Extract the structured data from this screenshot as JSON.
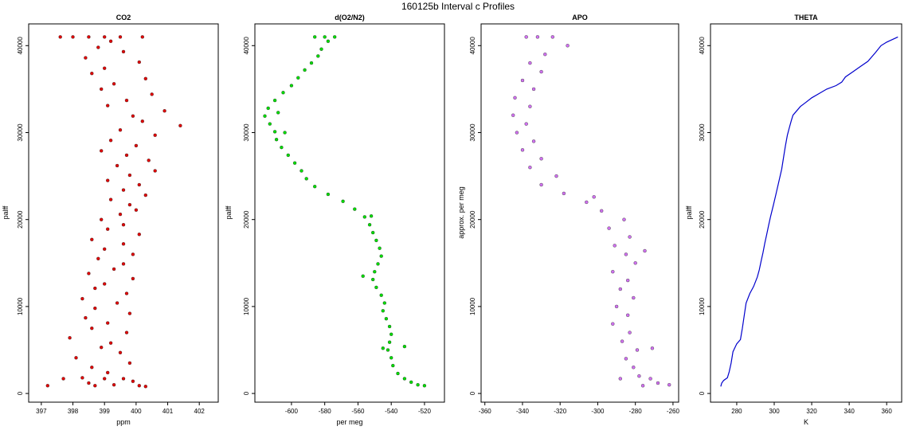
{
  "figure_title": "160125b   Interval c Profiles",
  "chart_data": [
    {
      "type": "scatter",
      "title": "CO2",
      "xlabel": "ppm",
      "ylabel": "palff",
      "xlim": [
        396.6,
        402.6
      ],
      "ylim": [
        -1000,
        42500
      ],
      "xticks": [
        397,
        398,
        399,
        400,
        401,
        402
      ],
      "yticks": [
        0,
        10000,
        20000,
        30000,
        40000
      ],
      "color": "#e00000",
      "series": [
        {
          "values": [
            [
              398.5,
              41000
            ],
            [
              399.0,
              41000
            ],
            [
              399.5,
              41000
            ],
            [
              398.0,
              41000
            ],
            [
              400.2,
              41000
            ],
            [
              397.6,
              41000
            ],
            [
              399.2,
              40500
            ],
            [
              398.8,
              39800
            ],
            [
              399.6,
              39300
            ],
            [
              398.4,
              38600
            ],
            [
              400.1,
              38100
            ],
            [
              399.0,
              37400
            ],
            [
              398.6,
              36800
            ],
            [
              400.3,
              36200
            ],
            [
              399.3,
              35600
            ],
            [
              398.9,
              35000
            ],
            [
              400.5,
              34400
            ],
            [
              399.7,
              33700
            ],
            [
              399.1,
              33100
            ],
            [
              400.9,
              32500
            ],
            [
              399.9,
              31900
            ],
            [
              400.2,
              31300
            ],
            [
              401.4,
              30800
            ],
            [
              399.5,
              30300
            ],
            [
              400.6,
              29700
            ],
            [
              399.2,
              29100
            ],
            [
              400.0,
              28500
            ],
            [
              398.9,
              27900
            ],
            [
              399.7,
              27400
            ],
            [
              400.4,
              26800
            ],
            [
              399.4,
              26200
            ],
            [
              400.6,
              25600
            ],
            [
              399.8,
              25100
            ],
            [
              399.1,
              24500
            ],
            [
              400.1,
              24000
            ],
            [
              399.6,
              23400
            ],
            [
              400.3,
              22800
            ],
            [
              399.2,
              22300
            ],
            [
              399.8,
              21700
            ],
            [
              400.0,
              21100
            ],
            [
              399.5,
              20600
            ],
            [
              398.9,
              20000
            ],
            [
              399.6,
              19400
            ],
            [
              399.1,
              18900
            ],
            [
              400.1,
              18300
            ],
            [
              398.6,
              17700
            ],
            [
              399.6,
              17200
            ],
            [
              399.0,
              16600
            ],
            [
              399.9,
              16000
            ],
            [
              398.8,
              15500
            ],
            [
              399.6,
              14900
            ],
            [
              399.3,
              14300
            ],
            [
              398.5,
              13800
            ],
            [
              399.9,
              13200
            ],
            [
              399.0,
              12600
            ],
            [
              398.7,
              12100
            ],
            [
              399.7,
              11500
            ],
            [
              398.3,
              10900
            ],
            [
              399.4,
              10400
            ],
            [
              398.7,
              9800
            ],
            [
              399.8,
              9200
            ],
            [
              398.4,
              8700
            ],
            [
              399.1,
              8100
            ],
            [
              398.6,
              7500
            ],
            [
              399.7,
              7000
            ],
            [
              397.9,
              6400
            ],
            [
              399.2,
              5800
            ],
            [
              398.9,
              5300
            ],
            [
              399.5,
              4700
            ],
            [
              398.1,
              4100
            ],
            [
              399.8,
              3500
            ],
            [
              398.6,
              3000
            ],
            [
              399.1,
              2400
            ],
            [
              398.3,
              1800
            ],
            [
              399.0,
              1700
            ],
            [
              399.6,
              1700
            ],
            [
              397.7,
              1700
            ],
            [
              398.5,
              1200
            ],
            [
              399.3,
              1000
            ],
            [
              397.2,
              900
            ],
            [
              400.1,
              900
            ],
            [
              398.7,
              900
            ],
            [
              399.9,
              1400
            ],
            [
              400.3,
              800
            ]
          ]
        }
      ]
    },
    {
      "type": "scatter",
      "title": "d(O2/N2)",
      "xlabel": "per meg",
      "ylabel": "palff",
      "xlim": [
        -622,
        -508
      ],
      "ylim": [
        -1000,
        42500
      ],
      "xticks": [
        -600,
        -580,
        -560,
        -540,
        -520
      ],
      "yticks": [
        0,
        10000,
        20000,
        30000,
        40000
      ],
      "color": "#00dd00",
      "series": [
        {
          "values": [
            [
              -580,
              41000
            ],
            [
              -574,
              41000
            ],
            [
              -586,
              41000
            ],
            [
              -578,
              40500
            ],
            [
              -582,
              39600
            ],
            [
              -584,
              38800
            ],
            [
              -588,
              38000
            ],
            [
              -592,
              37200
            ],
            [
              -596,
              36300
            ],
            [
              -600,
              35400
            ],
            [
              -605,
              34600
            ],
            [
              -610,
              33700
            ],
            [
              -614,
              32800
            ],
            [
              -616,
              31900
            ],
            [
              -613,
              31000
            ],
            [
              -610,
              30100
            ],
            [
              -609,
              29200
            ],
            [
              -606,
              28300
            ],
            [
              -602,
              27400
            ],
            [
              -598,
              26500
            ],
            [
              -594,
              25600
            ],
            [
              -591,
              24700
            ],
            [
              -586,
              23800
            ],
            [
              -578,
              22900
            ],
            [
              -569,
              22100
            ],
            [
              -562,
              21200
            ],
            [
              -556,
              20300
            ],
            [
              -553,
              19400
            ],
            [
              -551,
              18500
            ],
            [
              -549,
              17600
            ],
            [
              -547,
              16700
            ],
            [
              -546,
              15800
            ],
            [
              -548,
              14900
            ],
            [
              -550,
              14000
            ],
            [
              -551,
              13100
            ],
            [
              -549,
              12200
            ],
            [
              -546,
              11300
            ],
            [
              -544,
              10400
            ],
            [
              -545,
              9500
            ],
            [
              -543,
              8600
            ],
            [
              -541,
              7700
            ],
            [
              -540,
              6800
            ],
            [
              -541,
              5900
            ],
            [
              -542,
              5000
            ],
            [
              -540,
              4100
            ],
            [
              -539,
              3200
            ],
            [
              -536,
              2300
            ],
            [
              -532,
              1700
            ],
            [
              -528,
              1300
            ],
            [
              -524,
              1000
            ],
            [
              -520,
              900
            ],
            [
              -532,
              5400
            ],
            [
              -545,
              5200
            ],
            [
              -557,
              13500
            ],
            [
              -552,
              20400
            ],
            [
              -604,
              30000
            ],
            [
              -608,
              32300
            ]
          ]
        }
      ]
    },
    {
      "type": "scatter",
      "title": "APO",
      "xlabel": "",
      "ylabel": "approx. per meg",
      "xlim": [
        -362,
        -257
      ],
      "ylim": [
        -1000,
        42500
      ],
      "xticks": [
        -360,
        -340,
        -320,
        -300,
        -280,
        -260
      ],
      "yticks": [
        0,
        10000,
        20000,
        30000,
        40000
      ],
      "color": "#d070f0",
      "series": [
        {
          "values": [
            [
              -332,
              41000
            ],
            [
              -324,
              41000
            ],
            [
              -338,
              41000
            ],
            [
              -316,
              40000
            ],
            [
              -328,
              39000
            ],
            [
              -336,
              38000
            ],
            [
              -330,
              37000
            ],
            [
              -340,
              36000
            ],
            [
              -334,
              35000
            ],
            [
              -344,
              34000
            ],
            [
              -336,
              33000
            ],
            [
              -345,
              32000
            ],
            [
              -338,
              31000
            ],
            [
              -343,
              30000
            ],
            [
              -334,
              29000
            ],
            [
              -340,
              28000
            ],
            [
              -330,
              27000
            ],
            [
              -336,
              26000
            ],
            [
              -322,
              25000
            ],
            [
              -330,
              24000
            ],
            [
              -318,
              23000
            ],
            [
              -306,
              22000
            ],
            [
              -298,
              21000
            ],
            [
              -286,
              20000
            ],
            [
              -294,
              19000
            ],
            [
              -283,
              18000
            ],
            [
              -291,
              17000
            ],
            [
              -285,
              16000
            ],
            [
              -280,
              15000
            ],
            [
              -292,
              14000
            ],
            [
              -284,
              13000
            ],
            [
              -288,
              12000
            ],
            [
              -281,
              11000
            ],
            [
              -290,
              10000
            ],
            [
              -284,
              9000
            ],
            [
              -292,
              8000
            ],
            [
              -283,
              7000
            ],
            [
              -287,
              6000
            ],
            [
              -279,
              5000
            ],
            [
              -285,
              4000
            ],
            [
              -281,
              3000
            ],
            [
              -278,
              2000
            ],
            [
              -272,
              1700
            ],
            [
              -288,
              1700
            ],
            [
              -268,
              1200
            ],
            [
              -262,
              1000
            ],
            [
              -276,
              900
            ],
            [
              -271,
              5200
            ],
            [
              -275,
              16400
            ],
            [
              -302,
              22600
            ]
          ]
        }
      ]
    },
    {
      "type": "line",
      "title": "THETA",
      "xlabel": "K",
      "ylabel": "palff",
      "xlim": [
        266,
        368
      ],
      "ylim": [
        -1000,
        42500
      ],
      "xticks": [
        280,
        300,
        320,
        340,
        360
      ],
      "yticks": [
        0,
        10000,
        20000,
        30000,
        40000
      ],
      "color": "#0000cc",
      "series": [
        {
          "values": [
            [
              271.5,
              800
            ],
            [
              272,
              1200
            ],
            [
              273,
              1500
            ],
            [
              275,
              1800
            ],
            [
              276,
              2500
            ],
            [
              277,
              3500
            ],
            [
              278,
              4800
            ],
            [
              280,
              5700
            ],
            [
              282,
              6200
            ],
            [
              283,
              7500
            ],
            [
              284,
              9000
            ],
            [
              285,
              10400
            ],
            [
              287,
              11500
            ],
            [
              289,
              12300
            ],
            [
              291,
              13400
            ],
            [
              292,
              14200
            ],
            [
              293,
              15200
            ],
            [
              294,
              16200
            ],
            [
              295,
              17300
            ],
            [
              296,
              18300
            ],
            [
              297,
              19300
            ],
            [
              298,
              20300
            ],
            [
              299.5,
              21600
            ],
            [
              301,
              23000
            ],
            [
              302.5,
              24400
            ],
            [
              304,
              25800
            ],
            [
              305,
              27200
            ],
            [
              306,
              28500
            ],
            [
              307,
              29700
            ],
            [
              308,
              30500
            ],
            [
              309,
              31300
            ],
            [
              310,
              32000
            ],
            [
              312,
              32500
            ],
            [
              314,
              33000
            ],
            [
              317,
              33500
            ],
            [
              320,
              34000
            ],
            [
              324,
              34500
            ],
            [
              328,
              35000
            ],
            [
              333,
              35400
            ],
            [
              336,
              35800
            ],
            [
              338,
              36400
            ],
            [
              342,
              37000
            ],
            [
              346,
              37600
            ],
            [
              350,
              38200
            ],
            [
              354,
              39200
            ],
            [
              357,
              40000
            ],
            [
              360,
              40400
            ],
            [
              363,
              40700
            ],
            [
              366,
              41000
            ]
          ]
        }
      ]
    }
  ]
}
